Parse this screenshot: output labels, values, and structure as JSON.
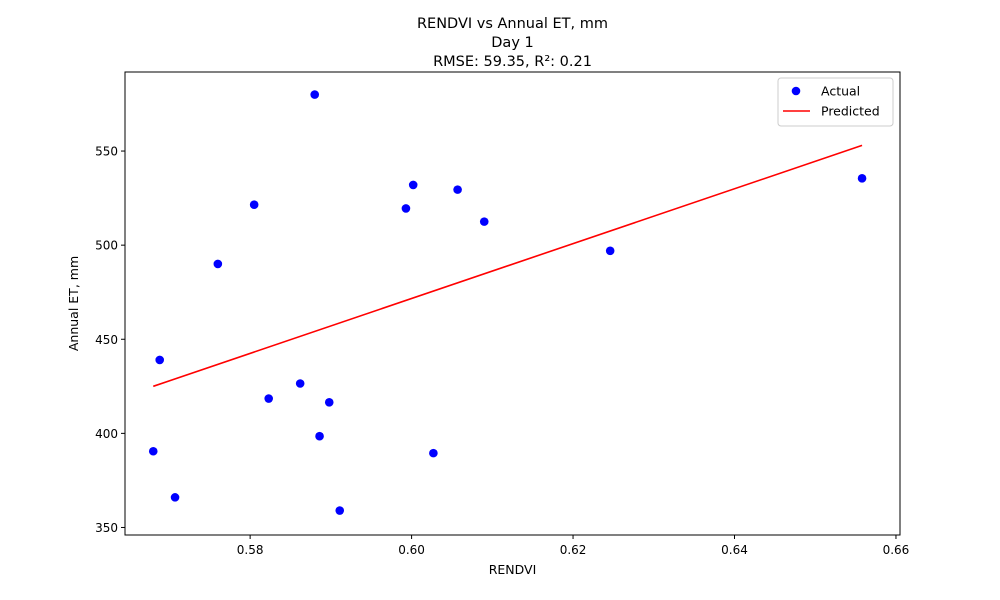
{
  "chart_data": {
    "type": "scatter",
    "title_lines": [
      "RENDVI vs Annual ET, mm",
      "Day 1",
      "RMSE: 59.35, R²: 0.21"
    ],
    "xlabel": "RENDVI",
    "ylabel": "Annual ET, mm",
    "xlim": [
      0.5645,
      0.6605
    ],
    "ylim": [
      346,
      592
    ],
    "xticks": [
      0.58,
      0.6,
      0.62,
      0.64,
      0.66
    ],
    "xtick_labels": [
      "0.58",
      "0.60",
      "0.62",
      "0.64",
      "0.66"
    ],
    "yticks": [
      350,
      400,
      450,
      500,
      550
    ],
    "ytick_labels": [
      "350",
      "400",
      "450",
      "500",
      "550"
    ],
    "grid": false,
    "legend_position": "top-right",
    "series": [
      {
        "name": "Actual",
        "kind": "scatter",
        "color": "#0000ff",
        "points": [
          [
            0.568,
            390.5
          ],
          [
            0.5688,
            439.0
          ],
          [
            0.5707,
            366.0
          ],
          [
            0.576,
            490.0
          ],
          [
            0.5805,
            521.5
          ],
          [
            0.5823,
            418.5
          ],
          [
            0.5862,
            426.5
          ],
          [
            0.588,
            580.0
          ],
          [
            0.5886,
            398.5
          ],
          [
            0.5898,
            416.5
          ],
          [
            0.5911,
            359.0
          ],
          [
            0.5993,
            519.5
          ],
          [
            0.6002,
            532.0
          ],
          [
            0.6027,
            389.5
          ],
          [
            0.6057,
            529.5
          ],
          [
            0.609,
            512.5
          ],
          [
            0.6246,
            497.0
          ],
          [
            0.6558,
            535.5
          ]
        ]
      },
      {
        "name": "Predicted",
        "kind": "line",
        "color": "#ff0000",
        "points": [
          [
            0.568,
            425.0
          ],
          [
            0.6558,
            553.0
          ]
        ]
      }
    ]
  }
}
